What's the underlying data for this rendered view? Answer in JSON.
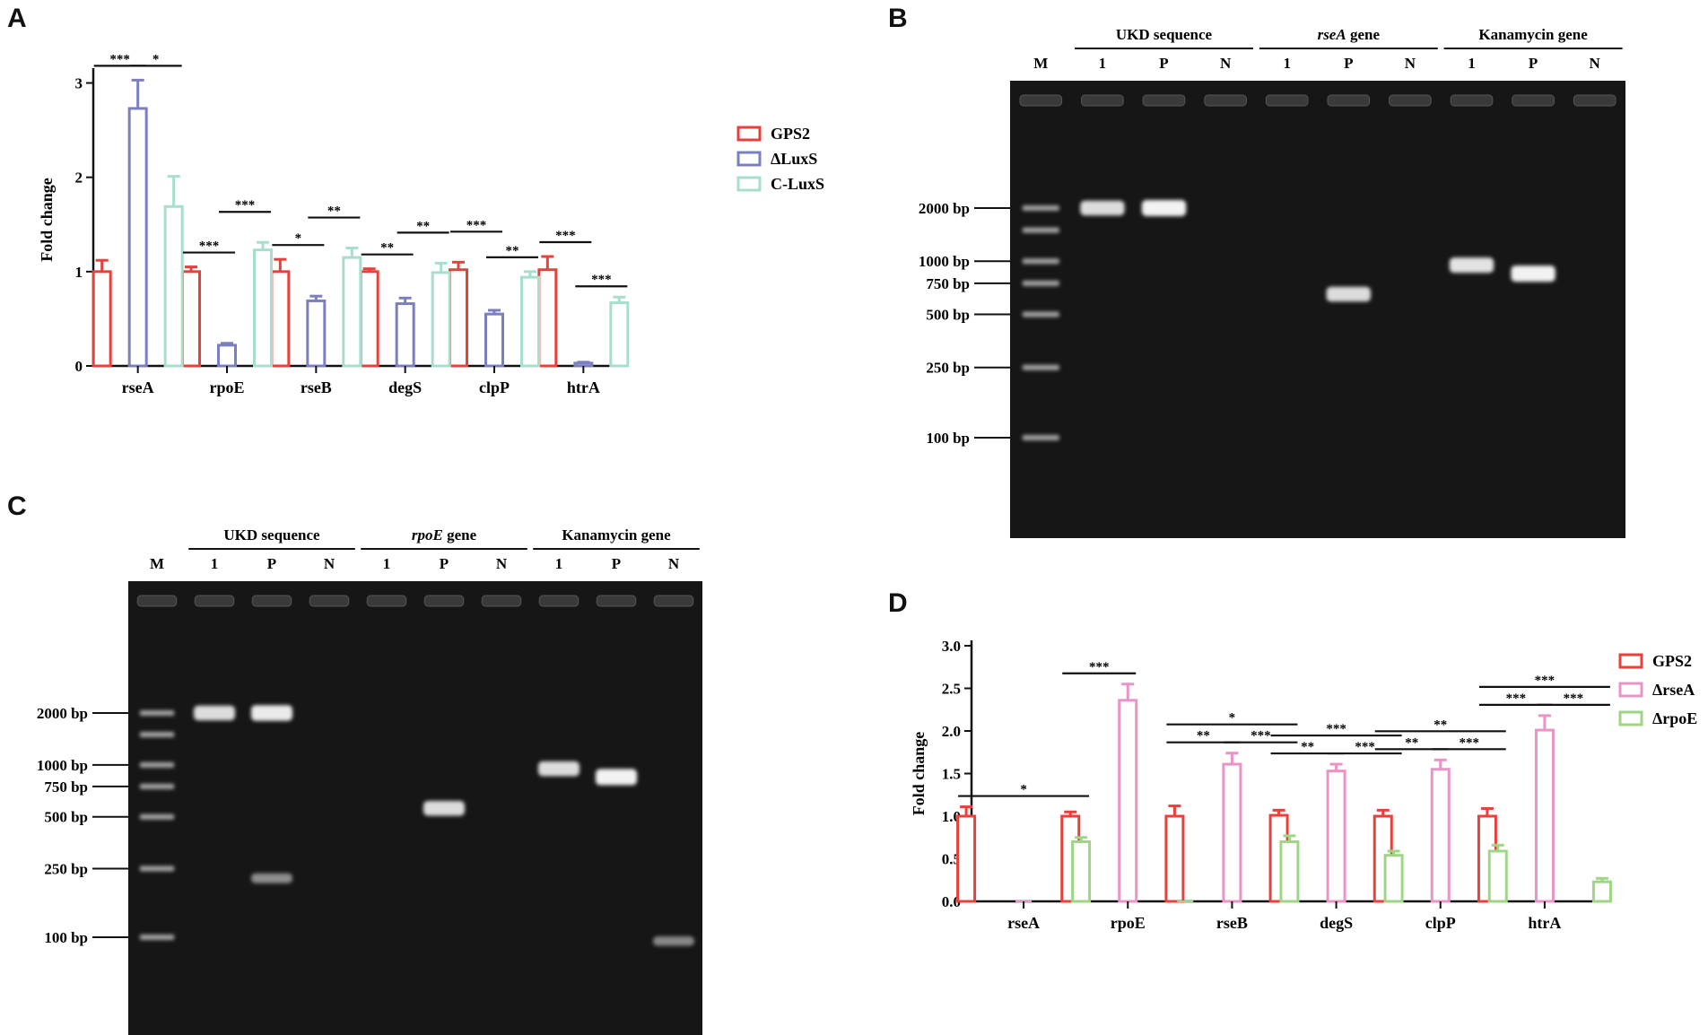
{
  "panels": {
    "A": "A",
    "B": "B",
    "C": "C",
    "D": "D"
  },
  "colors": {
    "GPS2": "#e8413c",
    "dLuxS": "#7b7fbf",
    "CLuxS": "#a8dfcc",
    "drseA": "#e993c6",
    "drpoE": "#9fd685",
    "gel_bg": "#161616",
    "band": "#f2f2f2"
  },
  "chart_data": [
    {
      "panel": "A",
      "type": "bar",
      "ylabel": "Fold change",
      "xlabel": "",
      "ylim": [
        0,
        3.1
      ],
      "yticks": [
        "0",
        "1",
        "2",
        "3"
      ],
      "ytick_values": [
        0,
        1,
        2,
        3
      ],
      "categories": [
        "rseA",
        "rpoE",
        "rseB",
        "degS",
        "clpP",
        "htrA"
      ],
      "legend_position": "right",
      "series": [
        {
          "name": "GPS2",
          "color_key": "GPS2",
          "values": [
            1.0,
            1.0,
            1.0,
            1.0,
            1.02,
            1.02
          ],
          "errors": [
            0.12,
            0.05,
            0.13,
            0.03,
            0.08,
            0.14
          ]
        },
        {
          "name": "ΔLuxS",
          "color_key": "dLuxS",
          "values": [
            2.73,
            0.22,
            0.69,
            0.66,
            0.55,
            0.03
          ],
          "errors": [
            0.3,
            0.02,
            0.05,
            0.06,
            0.04,
            0.01
          ]
        },
        {
          "name": "C-LuxS",
          "color_key": "CLuxS",
          "values": [
            1.69,
            1.23,
            1.15,
            0.99,
            0.94,
            0.67
          ],
          "errors": [
            0.32,
            0.08,
            0.1,
            0.1,
            0.06,
            0.06
          ]
        }
      ],
      "significance": [
        {
          "cat": 0,
          "from": 0,
          "to": 1,
          "level": 0,
          "label": "***"
        },
        {
          "cat": 0,
          "from": 1,
          "to": 2,
          "level": 0,
          "label": "*"
        },
        {
          "cat": 1,
          "from": 0,
          "to": 1,
          "level": 0,
          "label": "***"
        },
        {
          "cat": 1,
          "from": 1,
          "to": 2,
          "level": 1,
          "label": "***"
        },
        {
          "cat": 2,
          "from": 0,
          "to": 1,
          "level": 0,
          "label": "*"
        },
        {
          "cat": 2,
          "from": 1,
          "to": 2,
          "level": 1,
          "label": "**"
        },
        {
          "cat": 3,
          "from": 0,
          "to": 1,
          "level": 0,
          "label": "**"
        },
        {
          "cat": 3,
          "from": 1,
          "to": 2,
          "level": 1,
          "label": "**"
        },
        {
          "cat": 4,
          "from": 0,
          "to": 1,
          "level": 1,
          "label": "***"
        },
        {
          "cat": 4,
          "from": 1,
          "to": 2,
          "level": 0,
          "label": "**"
        },
        {
          "cat": 5,
          "from": 0,
          "to": 1,
          "level": 0,
          "label": "***"
        },
        {
          "cat": 5,
          "from": 1,
          "to": 2,
          "level": -1,
          "label": "***"
        }
      ]
    },
    {
      "panel": "D",
      "type": "bar",
      "ylabel": "Fold change",
      "xlabel": "",
      "ylim": [
        0,
        3.0
      ],
      "yticks": [
        "0.0",
        "0.5",
        "1.0",
        "1.5",
        "2.0",
        "2.5",
        "3.0"
      ],
      "ytick_values": [
        0,
        0.5,
        1.0,
        1.5,
        2.0,
        2.5,
        3.0
      ],
      "categories": [
        "rseA",
        "rpoE",
        "rseB",
        "degS",
        "clpP",
        "htrA"
      ],
      "legend_position": "right",
      "series": [
        {
          "name": "GPS2",
          "color_key": "GPS2",
          "values": [
            1.0,
            1.0,
            1.0,
            1.01,
            1.0,
            1.0
          ],
          "errors": [
            0.11,
            0.05,
            0.12,
            0.06,
            0.07,
            0.09
          ]
        },
        {
          "name": "ΔrseA",
          "color_key": "drseA",
          "values": [
            0,
            2.36,
            1.61,
            1.53,
            1.55,
            2.01
          ],
          "errors": [
            0,
            0.19,
            0.13,
            0.08,
            0.11,
            0.17
          ]
        },
        {
          "name": "ΔrpoE",
          "color_key": "drpoE",
          "values": [
            0.7,
            0,
            0.7,
            0.54,
            0.59,
            0.23
          ],
          "errors": [
            0.05,
            0,
            0.07,
            0.05,
            0.07,
            0.04
          ]
        }
      ],
      "significance": [
        {
          "cat": 0,
          "from": 0,
          "to": 2,
          "level": 0,
          "label": "*"
        },
        {
          "cat": 1,
          "from": 0,
          "to": 1,
          "level": 0,
          "label": "***"
        },
        {
          "cat": 2,
          "from": 0,
          "to": 1,
          "level": 0,
          "label": "**"
        },
        {
          "cat": 2,
          "from": 1,
          "to": 2,
          "level": 0,
          "label": "***"
        },
        {
          "cat": 2,
          "from": 0,
          "to": 2,
          "level": 1,
          "label": "*"
        },
        {
          "cat": 3,
          "from": 0,
          "to": 1,
          "level": 0,
          "label": "**"
        },
        {
          "cat": 3,
          "from": 1,
          "to": 2,
          "level": 0,
          "label": "***"
        },
        {
          "cat": 3,
          "from": 0,
          "to": 2,
          "level": 1,
          "label": "***"
        },
        {
          "cat": 4,
          "from": 0,
          "to": 1,
          "level": 0,
          "label": "**"
        },
        {
          "cat": 4,
          "from": 1,
          "to": 2,
          "level": 0,
          "label": "***"
        },
        {
          "cat": 4,
          "from": 0,
          "to": 2,
          "level": 1,
          "label": "**"
        },
        {
          "cat": 5,
          "from": 0,
          "to": 1,
          "level": 0,
          "label": "***"
        },
        {
          "cat": 5,
          "from": 1,
          "to": 2,
          "level": 0,
          "label": "***"
        },
        {
          "cat": 5,
          "from": 0,
          "to": 2,
          "level": 1,
          "label": "***"
        }
      ]
    }
  ],
  "gels": [
    {
      "panel": "B",
      "groups": [
        {
          "name": "UKD sequence",
          "italic": false
        },
        {
          "name": "rseA",
          "suffix": " gene",
          "italic": true
        },
        {
          "name": "Kanamycin gene",
          "italic": false
        }
      ],
      "lanes": [
        "M",
        "1",
        "P",
        "N",
        "1",
        "P",
        "N",
        "1",
        "P",
        "N"
      ],
      "markers": [
        "2000 bp",
        "1000 bp",
        "750 bp",
        "500 bp",
        "250 bp",
        "100 bp"
      ],
      "marker_sizes_bp": [
        2000,
        1000,
        750,
        500,
        250,
        100
      ],
      "bands": [
        {
          "lane": 1,
          "size_bp": 2000,
          "intensity": 0.85
        },
        {
          "lane": 2,
          "size_bp": 2000,
          "intensity": 1.0
        },
        {
          "lane": 5,
          "size_bp": 650,
          "intensity": 0.85
        },
        {
          "lane": 7,
          "size_bp": 950,
          "intensity": 0.9
        },
        {
          "lane": 8,
          "size_bp": 850,
          "intensity": 1.0
        }
      ]
    },
    {
      "panel": "C",
      "groups": [
        {
          "name": "UKD sequence",
          "italic": false
        },
        {
          "name": "rpoE",
          "suffix": " gene",
          "italic": true
        },
        {
          "name": "Kanamycin gene",
          "italic": false
        }
      ],
      "lanes": [
        "M",
        "1",
        "P",
        "N",
        "1",
        "P",
        "N",
        "1",
        "P",
        "N"
      ],
      "markers": [
        "2000 bp",
        "1000 bp",
        "750 bp",
        "500 bp",
        "250 bp",
        "100 bp"
      ],
      "marker_sizes_bp": [
        2000,
        1000,
        750,
        500,
        250,
        100
      ],
      "bands": [
        {
          "lane": 1,
          "size_bp": 2000,
          "intensity": 0.85
        },
        {
          "lane": 2,
          "size_bp": 2000,
          "intensity": 0.95
        },
        {
          "lane": 2,
          "size_bp": 220,
          "intensity": 0.3
        },
        {
          "lane": 5,
          "size_bp": 560,
          "intensity": 0.85
        },
        {
          "lane": 7,
          "size_bp": 950,
          "intensity": 0.85
        },
        {
          "lane": 8,
          "size_bp": 850,
          "intensity": 1.0
        },
        {
          "lane": 9,
          "size_bp": 95,
          "intensity": 0.25
        }
      ]
    }
  ]
}
